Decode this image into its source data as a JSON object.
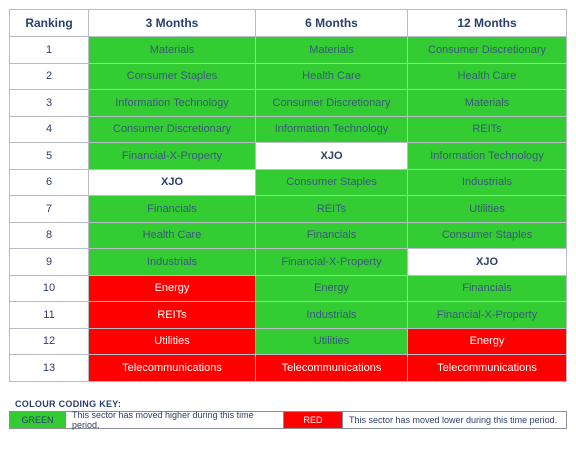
{
  "table": {
    "headers": [
      "Ranking",
      "3 Months",
      "6 Months",
      "12 Months"
    ],
    "rows": [
      {
        "rank": "1",
        "cells": [
          {
            "text": "Materials",
            "color": "green"
          },
          {
            "text": "Materials",
            "color": "green"
          },
          {
            "text": "Consumer Discretionary",
            "color": "green"
          }
        ]
      },
      {
        "rank": "2",
        "cells": [
          {
            "text": "Consumer Staples",
            "color": "green"
          },
          {
            "text": "Health Care",
            "color": "green"
          },
          {
            "text": "Health Care",
            "color": "green"
          }
        ]
      },
      {
        "rank": "3",
        "cells": [
          {
            "text": "Information Technology",
            "color": "green"
          },
          {
            "text": "Consumer Discretionary",
            "color": "green"
          },
          {
            "text": "Materials",
            "color": "green"
          }
        ]
      },
      {
        "rank": "4",
        "cells": [
          {
            "text": "Consumer Discretionary",
            "color": "green"
          },
          {
            "text": "Information Technology",
            "color": "green"
          },
          {
            "text": "REITs",
            "color": "green"
          }
        ]
      },
      {
        "rank": "5",
        "cells": [
          {
            "text": "Financial-X-Property",
            "color": "green"
          },
          {
            "text": "XJO",
            "color": "white"
          },
          {
            "text": "Information Technology",
            "color": "green"
          }
        ]
      },
      {
        "rank": "6",
        "cells": [
          {
            "text": "XJO",
            "color": "white"
          },
          {
            "text": "Consumer Staples",
            "color": "green"
          },
          {
            "text": "Industrials",
            "color": "green"
          }
        ]
      },
      {
        "rank": "7",
        "cells": [
          {
            "text": "Financials",
            "color": "green"
          },
          {
            "text": "REITs",
            "color": "green"
          },
          {
            "text": "Utilities",
            "color": "green"
          }
        ]
      },
      {
        "rank": "8",
        "cells": [
          {
            "text": "Health Care",
            "color": "green"
          },
          {
            "text": "Financials",
            "color": "green"
          },
          {
            "text": "Consumer Staples",
            "color": "green"
          }
        ]
      },
      {
        "rank": "9",
        "cells": [
          {
            "text": "Industrials",
            "color": "green"
          },
          {
            "text": "Financial-X-Property",
            "color": "green"
          },
          {
            "text": "XJO",
            "color": "white"
          }
        ]
      },
      {
        "rank": "10",
        "cells": [
          {
            "text": "Energy",
            "color": "red"
          },
          {
            "text": "Energy",
            "color": "green"
          },
          {
            "text": "Financials",
            "color": "green"
          }
        ]
      },
      {
        "rank": "11",
        "cells": [
          {
            "text": "REITs",
            "color": "red"
          },
          {
            "text": "Industrials",
            "color": "green"
          },
          {
            "text": "Financial-X-Property",
            "color": "green"
          }
        ]
      },
      {
        "rank": "12",
        "cells": [
          {
            "text": "Utilities",
            "color": "red"
          },
          {
            "text": "Utilities",
            "color": "green"
          },
          {
            "text": "Energy",
            "color": "red"
          }
        ]
      },
      {
        "rank": "13",
        "cells": [
          {
            "text": "Telecommunications",
            "color": "red"
          },
          {
            "text": "Telecommunications",
            "color": "red"
          },
          {
            "text": "Telecommunications",
            "color": "red"
          }
        ]
      }
    ]
  },
  "key": {
    "title": "COLOUR CODING KEY:",
    "green_label": "GREEN",
    "green_desc": "This sector has moved higher during this time period.",
    "red_label": "RED",
    "red_desc": "This sector has moved lower during this time period."
  },
  "colors": {
    "green": "#33cc33",
    "red": "#ff0000",
    "header_text": "#2c3e6b"
  }
}
